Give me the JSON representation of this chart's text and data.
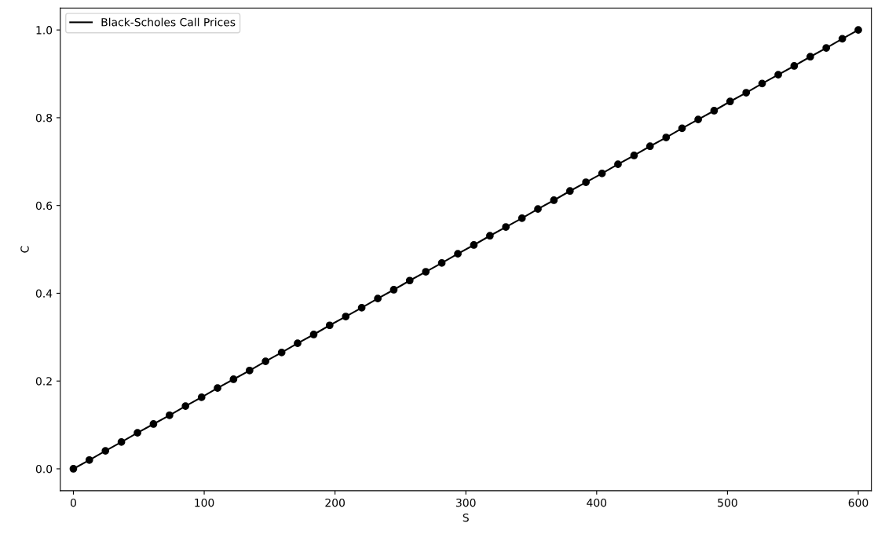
{
  "chart_data": {
    "type": "line",
    "xlabel": "S",
    "ylabel": "C",
    "x": [
      0,
      12.2,
      24.5,
      36.7,
      49.0,
      61.2,
      73.5,
      85.7,
      98.0,
      110.2,
      122.4,
      134.7,
      146.9,
      159.2,
      171.4,
      183.7,
      195.9,
      208.2,
      220.4,
      232.7,
      244.9,
      257.1,
      269.4,
      281.6,
      293.9,
      306.1,
      318.4,
      330.6,
      342.9,
      355.1,
      367.3,
      379.6,
      391.8,
      404.1,
      416.3,
      428.6,
      440.8,
      453.1,
      465.3,
      477.6,
      489.8,
      502.0,
      514.3,
      526.5,
      538.8,
      551.0,
      563.3,
      575.5,
      587.8,
      600.0
    ],
    "series": [
      {
        "name": "Black-Scholes Call Prices",
        "color": "#000000",
        "values": [
          0,
          0.02,
          0.041,
          0.061,
          0.082,
          0.102,
          0.122,
          0.143,
          0.163,
          0.184,
          0.204,
          0.224,
          0.245,
          0.265,
          0.286,
          0.306,
          0.327,
          0.347,
          0.367,
          0.388,
          0.408,
          0.429,
          0.449,
          0.469,
          0.49,
          0.51,
          0.531,
          0.551,
          0.571,
          0.592,
          0.612,
          0.633,
          0.653,
          0.673,
          0.694,
          0.714,
          0.735,
          0.755,
          0.776,
          0.796,
          0.816,
          0.837,
          0.857,
          0.878,
          0.898,
          0.918,
          0.939,
          0.959,
          0.98,
          1.0
        ]
      }
    ],
    "xlim": [
      -10,
      610
    ],
    "xticks": [
      0,
      100,
      200,
      300,
      400,
      500,
      600
    ],
    "ylim": [
      -0.05,
      1.05
    ],
    "yticks": [
      {
        "value": 0,
        "label": "0.0"
      },
      0.2,
      0.4,
      0.6,
      0.8,
      {
        "value": 1,
        "label": "1.0"
      }
    ],
    "marker": "circle",
    "line_style": "solid",
    "grid": false,
    "legend": "top left"
  }
}
